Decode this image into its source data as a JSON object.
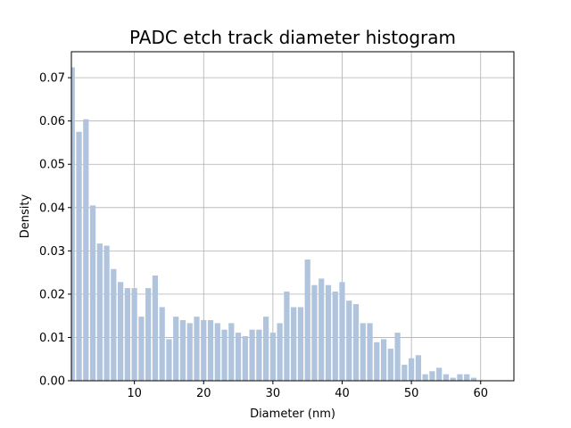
{
  "chart_data": {
    "type": "bar",
    "title": "PADC etch track diameter histogram",
    "xlabel": "Diameter (nm)",
    "ylabel": "Density",
    "xlim": [
      0.9,
      64.8
    ],
    "ylim": [
      0,
      0.076
    ],
    "xticks": [
      10,
      20,
      30,
      40,
      50,
      60
    ],
    "yticks": [
      0.0,
      0.01,
      0.02,
      0.03,
      0.04,
      0.05,
      0.06,
      0.07
    ],
    "ytick_labels": [
      "0.00",
      "0.01",
      "0.02",
      "0.03",
      "0.04",
      "0.05",
      "0.06",
      "0.07"
    ],
    "grid": true,
    "bar_color": "#b0c4de",
    "bar_width": 0.8,
    "x": [
      1,
      2,
      3,
      4,
      5,
      6,
      7,
      8,
      9,
      10,
      11,
      12,
      13,
      14,
      15,
      16,
      17,
      18,
      19,
      20,
      21,
      22,
      23,
      24,
      25,
      26,
      27,
      28,
      29,
      30,
      31,
      32,
      33,
      34,
      35,
      36,
      37,
      38,
      39,
      40,
      41,
      42,
      43,
      44,
      45,
      46,
      47,
      48,
      49,
      50,
      51,
      52,
      53,
      54,
      55,
      56,
      57,
      58,
      59,
      60,
      61,
      62,
      63
    ],
    "values": [
      0.0724,
      0.0575,
      0.0604,
      0.0405,
      0.0317,
      0.0312,
      0.0258,
      0.0228,
      0.0214,
      0.0214,
      0.0148,
      0.0214,
      0.0243,
      0.017,
      0.0096,
      0.0148,
      0.014,
      0.0133,
      0.0148,
      0.014,
      0.014,
      0.0133,
      0.0118,
      0.0133,
      0.0111,
      0.0103,
      0.0118,
      0.0118,
      0.0148,
      0.0111,
      0.0133,
      0.0206,
      0.017,
      0.017,
      0.028,
      0.0221,
      0.0236,
      0.0221,
      0.0206,
      0.0228,
      0.0185,
      0.0177,
      0.0133,
      0.0133,
      0.0089,
      0.0096,
      0.0074,
      0.0111,
      0.0037,
      0.0052,
      0.0059,
      0.0015,
      0.0022,
      0.003,
      0.0015,
      0.0007,
      0.0015,
      0.0015,
      0.0007,
      0.0,
      0.0,
      0.0,
      0.0
    ]
  }
}
